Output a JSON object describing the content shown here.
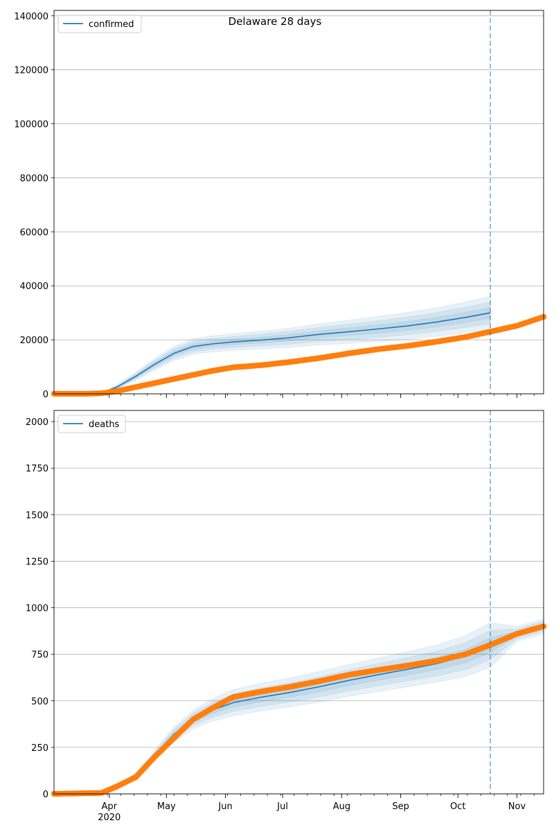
{
  "title": "Delaware 28 days",
  "x_ticks": [
    "Apr",
    "May",
    "Jun",
    "Jul",
    "Aug",
    "Sep",
    "Oct",
    "Nov"
  ],
  "year_label": "2020",
  "colors": {
    "model": "#1f77b4",
    "observed": "#ff7f0e",
    "band": "#1f77b4",
    "cutoff": "#1f77b4",
    "grid": "#b0b0b0"
  },
  "chart_data": [
    {
      "type": "line",
      "legend": "confirmed",
      "legend_position": "top-left",
      "grid": "y",
      "x_range": [
        "2020-03-03",
        "2020-11-15"
      ],
      "ylim": [
        0,
        142000
      ],
      "y_ticks": [
        0,
        20000,
        40000,
        60000,
        80000,
        100000,
        120000,
        140000
      ],
      "forecast_cutoff": "2020-10-18",
      "series": [
        {
          "name": "confirmed",
          "style": "model-line-with-uncertainty-bands",
          "x": [
            "2020-03-03",
            "2020-03-20",
            "2020-03-28",
            "2020-04-05",
            "2020-04-15",
            "2020-04-25",
            "2020-05-05",
            "2020-05-15",
            "2020-05-25",
            "2020-06-05",
            "2020-06-20",
            "2020-07-05",
            "2020-07-20",
            "2020-08-05",
            "2020-08-20",
            "2020-09-05",
            "2020-09-20",
            "2020-10-05",
            "2020-10-18"
          ],
          "y": [
            0,
            0,
            300,
            2500,
            6500,
            11000,
            15000,
            17500,
            18500,
            19200,
            19900,
            20800,
            22000,
            23000,
            24000,
            25200,
            26600,
            28300,
            30000
          ],
          "band_spread": [
            0,
            0,
            200,
            800,
            1500,
            2200,
            2700,
            2900,
            3000,
            3100,
            3300,
            3600,
            3900,
            4300,
            4700,
            5000,
            5300,
            5700,
            6000
          ]
        },
        {
          "style": "observed-markers",
          "x": [
            "2020-03-03",
            "2020-03-20",
            "2020-03-28",
            "2020-04-05",
            "2020-04-15",
            "2020-04-25",
            "2020-05-05",
            "2020-05-15",
            "2020-05-25",
            "2020-06-05",
            "2020-06-20",
            "2020-07-05",
            "2020-07-20",
            "2020-08-05",
            "2020-08-20",
            "2020-09-05",
            "2020-09-20",
            "2020-10-05",
            "2020-10-18",
            "2020-11-01",
            "2020-11-15"
          ],
          "y": [
            0,
            0,
            200,
            1000,
            2500,
            4000,
            5500,
            7000,
            8500,
            9800,
            10600,
            11800,
            13200,
            15000,
            16500,
            17800,
            19300,
            21000,
            23000,
            25200,
            28500
          ]
        }
      ]
    },
    {
      "type": "line",
      "legend": "deaths",
      "legend_position": "top-left",
      "grid": "y",
      "x_range": [
        "2020-03-03",
        "2020-11-15"
      ],
      "ylim": [
        0,
        2060
      ],
      "y_ticks": [
        0,
        250,
        500,
        750,
        1000,
        1250,
        1500,
        1750,
        2000
      ],
      "forecast_cutoff": "2020-10-18",
      "series": [
        {
          "name": "deaths",
          "style": "model-line-with-uncertainty-bands",
          "x": [
            "2020-03-03",
            "2020-03-28",
            "2020-04-05",
            "2020-04-15",
            "2020-04-25",
            "2020-05-05",
            "2020-05-15",
            "2020-05-25",
            "2020-06-05",
            "2020-06-20",
            "2020-07-05",
            "2020-07-20",
            "2020-08-05",
            "2020-08-20",
            "2020-09-05",
            "2020-09-20",
            "2020-10-05",
            "2020-10-18",
            "2020-11-01",
            "2020-11-15"
          ],
          "y": [
            0,
            5,
            30,
            100,
            210,
            320,
            400,
            450,
            490,
            520,
            545,
            575,
            610,
            640,
            670,
            700,
            740,
            800,
            860,
            900
          ],
          "band_spread": [
            0,
            3,
            8,
            15,
            25,
            40,
            50,
            60,
            70,
            75,
            78,
            82,
            86,
            90,
            95,
            100,
            110,
            120,
            40,
            40
          ]
        },
        {
          "style": "observed-markers",
          "x": [
            "2020-03-03",
            "2020-03-28",
            "2020-04-05",
            "2020-04-15",
            "2020-04-25",
            "2020-05-05",
            "2020-05-15",
            "2020-05-25",
            "2020-06-05",
            "2020-06-20",
            "2020-07-05",
            "2020-07-20",
            "2020-08-05",
            "2020-08-20",
            "2020-09-05",
            "2020-09-20",
            "2020-10-05",
            "2020-10-18",
            "2020-11-01",
            "2020-11-15"
          ],
          "y": [
            0,
            5,
            40,
            90,
            200,
            300,
            400,
            460,
            520,
            550,
            575,
            605,
            640,
            665,
            690,
            715,
            750,
            800,
            860,
            900
          ]
        }
      ]
    }
  ]
}
